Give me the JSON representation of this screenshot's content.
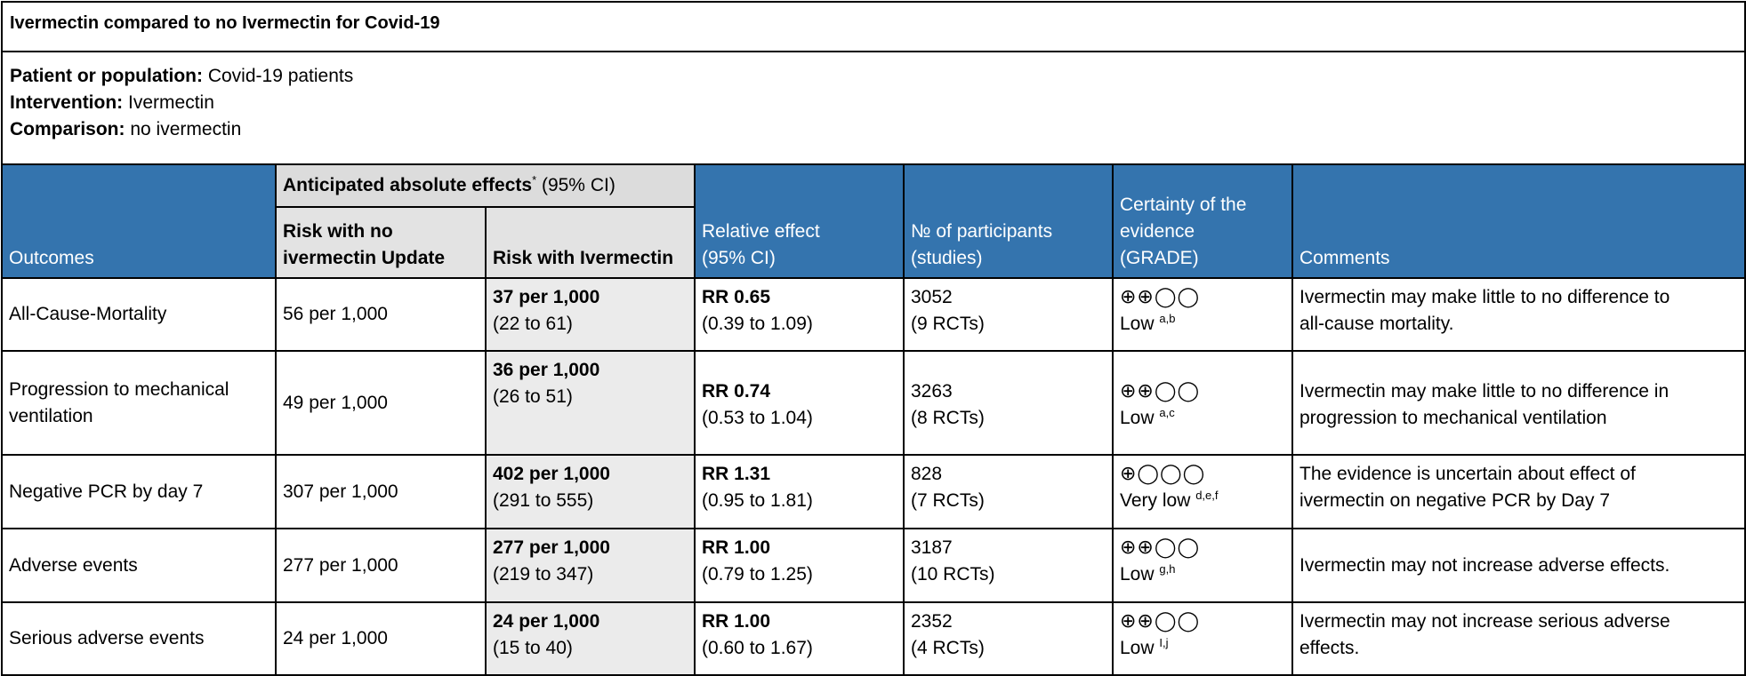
{
  "title": "Ivermectin compared to no Ivermectin for Covid-19",
  "population": {
    "patient_label": "Patient or population:",
    "patient_value": "Covid-19 patients",
    "intervention_label": "Intervention:",
    "intervention_value": "Ivermectin",
    "comparison_label": "Comparison:",
    "comparison_value": "no ivermectin"
  },
  "headers": {
    "outcomes": "Outcomes",
    "anticipated_bold": "Anticipated absolute effects",
    "anticipated_star": "*",
    "anticipated_ci": " (95% CI)",
    "risk_no_line1": "Risk with no",
    "risk_no_line2": "ivermectin Update",
    "risk_with": "Risk with Ivermectin",
    "relative_line1": "Relative effect",
    "relative_line2": "(95% CI)",
    "participants_line1": "№ of participants",
    "participants_line2": "(studies)",
    "certainty_line1": "Certainty of the",
    "certainty_line2": "evidence",
    "certainty_line3": "(GRADE)",
    "comments": "Comments"
  },
  "rows": [
    {
      "outcome_line1": "All-Cause-Mortality",
      "outcome_line2": "",
      "risk_no": "56 per 1,000",
      "risk_with": "37 per 1,000",
      "risk_with_ci": "(22 to 61)",
      "rr": "RR 0.65",
      "rr_ci": "(0.39 to 1.09)",
      "participants": "3052",
      "studies": "(9 RCTs)",
      "grade_symbols": "⊕⊕◯◯",
      "grade_label": "Low ",
      "grade_notes": "a,b",
      "comment_line1": "Ivermectin may make little to no difference to",
      "comment_line2": "all-cause mortality."
    },
    {
      "outcome_line1": "Progression to mechanical",
      "outcome_line2": "ventilation",
      "risk_no": "49 per 1,000",
      "risk_with": "36 per 1,000",
      "risk_with_ci": "(26 to 51)",
      "rr": "RR 0.74",
      "rr_ci": "(0.53 to 1.04)",
      "participants": "3263",
      "studies": "(8 RCTs)",
      "grade_symbols": "⊕⊕◯◯",
      "grade_label": "Low ",
      "grade_notes": "a,c",
      "comment_line1": "Ivermectin may make little to no difference in",
      "comment_line2": "progression to mechanical ventilation"
    },
    {
      "outcome_line1": "Negative PCR by day 7",
      "outcome_line2": "",
      "risk_no": "307 per 1,000",
      "risk_with": "402 per 1,000",
      "risk_with_ci": "(291 to 555)",
      "rr": "RR 1.31",
      "rr_ci": "(0.95 to 1.81)",
      "participants": "828",
      "studies": "(7 RCTs)",
      "grade_symbols": "⊕◯◯◯",
      "grade_label": "Very low ",
      "grade_notes": "d,e,f",
      "comment_line1": "The evidence is uncertain about effect of",
      "comment_line2": "ivermectin on negative PCR by Day 7"
    },
    {
      "outcome_line1": "Adverse events",
      "outcome_line2": "",
      "risk_no": "277 per 1,000",
      "risk_with": "277 per 1,000",
      "risk_with_ci": "(219 to 347)",
      "rr": "RR 1.00",
      "rr_ci": "(0.79 to 1.25)",
      "participants": "3187",
      "studies": "(10 RCTs)",
      "grade_symbols": "⊕⊕◯◯",
      "grade_label": "Low ",
      "grade_notes": "g,h",
      "comment_line1": "Ivermectin may not increase adverse effects.",
      "comment_line2": ""
    },
    {
      "outcome_line1": "Serious adverse events",
      "outcome_line2": "",
      "risk_no": "24 per 1,000",
      "risk_with": "24 per 1,000",
      "risk_with_ci": "(15 to 40)",
      "rr": "RR 1.00",
      "rr_ci": "(0.60 to 1.67)",
      "participants": "2352",
      "studies": "(4 RCTs)",
      "grade_symbols": "⊕⊕◯◯",
      "grade_label": "Low ",
      "grade_notes": "I,j",
      "comment_line1": "Ivermectin may not increase serious adverse",
      "comment_line2": "effects."
    }
  ]
}
